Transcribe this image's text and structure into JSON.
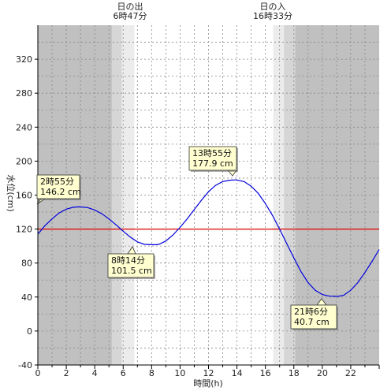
{
  "chart_data": {
    "type": "line",
    "xlabel": "時間(h)",
    "ylabel": "水位(cm)",
    "xlim": [
      0,
      24
    ],
    "ylim": [
      -40,
      360
    ],
    "x_ticks": [
      0,
      2,
      4,
      6,
      8,
      10,
      12,
      14,
      16,
      18,
      20,
      22
    ],
    "y_ticks": [
      -40,
      0,
      40,
      80,
      120,
      160,
      200,
      240,
      280,
      320
    ],
    "grid": true,
    "reference_line": {
      "value": 120,
      "color": "#e00000"
    },
    "sunrise": {
      "label": "日の出",
      "time": "6時47分",
      "hour": 6.783
    },
    "sunset": {
      "label": "日の入",
      "time": "16時33分",
      "hour": 16.55
    },
    "twilight": {
      "morning_start": 5.2,
      "morning_mid": 5.9,
      "evening_mid": 17.3,
      "evening_end": 18.1
    },
    "series": [
      {
        "color": "#0000dd",
        "x": [
          0,
          0.5,
          1,
          1.5,
          2,
          2.5,
          2.92,
          3.5,
          4,
          4.5,
          5,
          5.5,
          6,
          6.5,
          7,
          7.5,
          8.23,
          8.5,
          9,
          9.5,
          10,
          10.5,
          11,
          11.5,
          12,
          12.5,
          13,
          13.5,
          13.92,
          14.5,
          15,
          15.5,
          16,
          16.5,
          17,
          17.5,
          18,
          18.5,
          19,
          19.5,
          20,
          20.5,
          21.1,
          21.5,
          22,
          22.5,
          23,
          23.5,
          24
        ],
        "y": [
          114,
          124,
          132,
          139,
          143.5,
          145.7,
          146.2,
          145.3,
          142.5,
          138,
          132,
          125,
          117.5,
          110.5,
          105,
          102,
          101.5,
          102,
          106,
          113,
          122,
          132,
          143,
          154,
          164,
          171.5,
          176,
          177.5,
          177.9,
          176,
          170.5,
          162,
          150,
          136,
          120,
          103,
          86,
          70,
          57,
          48,
          43,
          41,
          40.7,
          42,
          48,
          57,
          69,
          82,
          96
        ]
      }
    ],
    "annotations": [
      {
        "time": "2時55分",
        "value": "146.2 cm"
      },
      {
        "time": "8時14分",
        "value": "101.5 cm"
      },
      {
        "time": "13時55分",
        "value": "177.9 cm"
      },
      {
        "time": "21時6分",
        "value": "40.7 cm"
      }
    ]
  }
}
